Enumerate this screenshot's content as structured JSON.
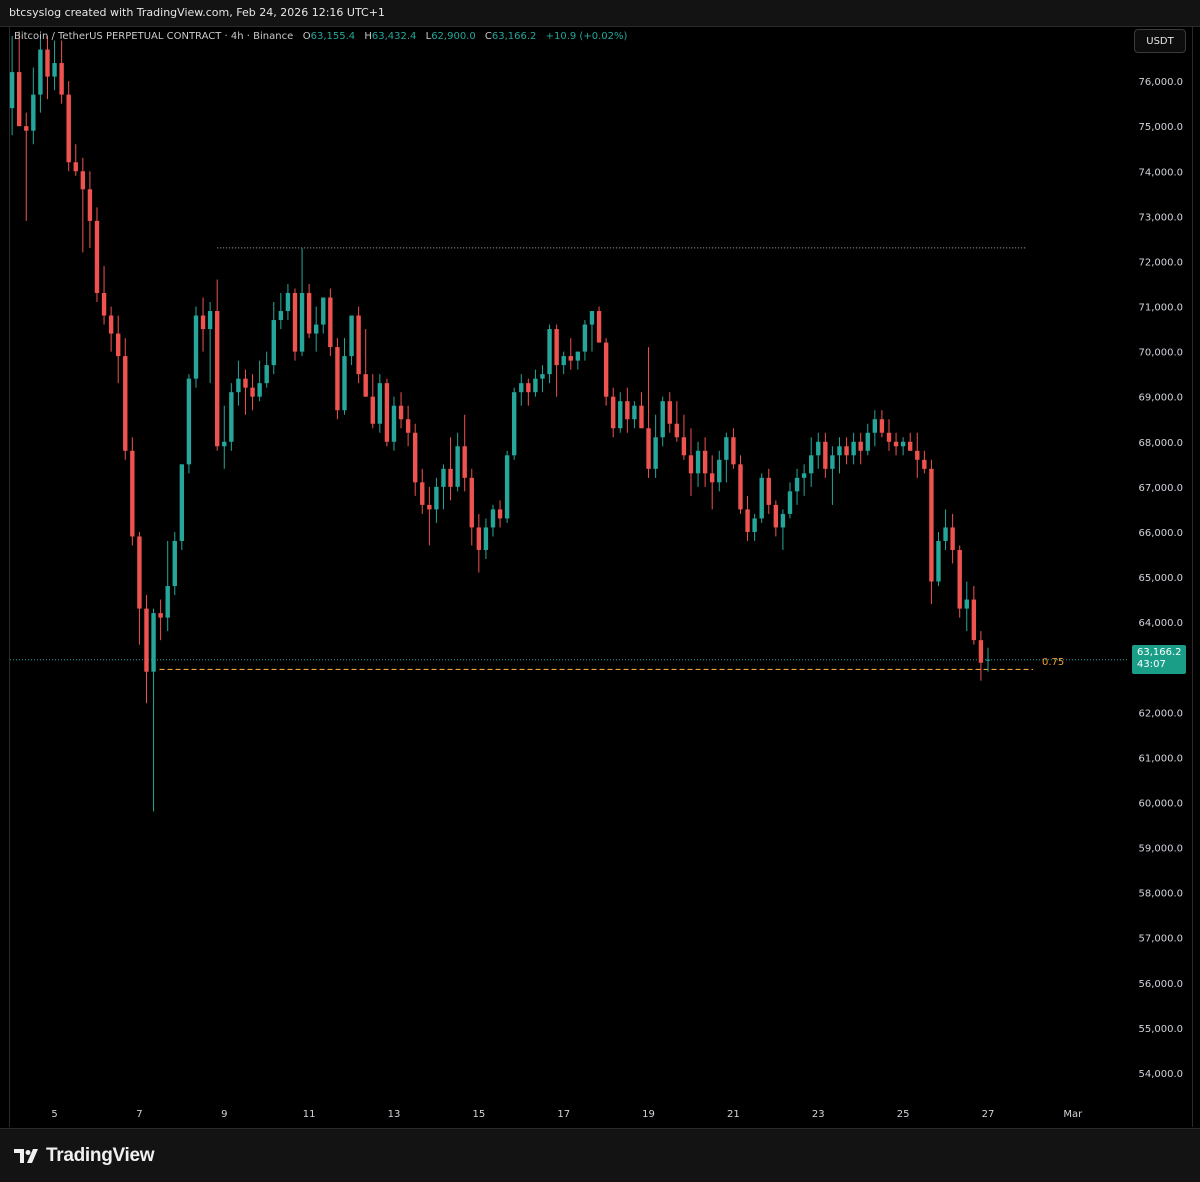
{
  "header": {
    "credit": "btcsyslog created with TradingView.com, Feb 24, 2026 12:16 UTC+1"
  },
  "legend": {
    "symbol": "Bitcoin / TetherUS PERPETUAL CONTRACT · 4h · Binance",
    "open_label": "O",
    "open": "63,155.4",
    "high_label": "H",
    "high": "63,432.4",
    "low_label": "L",
    "low": "62,900.0",
    "close_label": "C",
    "close": "63,166.2",
    "change": "+10.9 (+0.02%)"
  },
  "currency_button": "USDT",
  "price_tag": {
    "price": "63,166.2",
    "countdown": "43:07"
  },
  "fib_level": {
    "label": "0.75",
    "price": 62950,
    "color": "#f0a030"
  },
  "resistance_level": 72300,
  "footer": {
    "brand": "TradingView"
  },
  "colors": {
    "up": "#26a69a",
    "down": "#ef5350",
    "background": "#000000"
  },
  "chart_data": {
    "type": "candlestick",
    "timeframe": "4h",
    "ylim": [
      53400,
      77200
    ],
    "y_ticks": [
      76000,
      75000,
      74000,
      73000,
      72000,
      71000,
      70000,
      69000,
      68000,
      67000,
      66000,
      65000,
      64000,
      63000,
      62000,
      61000,
      60000,
      59000,
      58000,
      57000,
      56000,
      55000,
      54000
    ],
    "y_tick_labels": [
      "76,000.0",
      "75,000.0",
      "74,000.0",
      "73,000.0",
      "72,000.0",
      "71,000.0",
      "70,000.0",
      "69,000.0",
      "68,000.0",
      "67,000.0",
      "66,000.0",
      "65,000.0",
      "64,000.0",
      "63,000.0",
      "62,000.0",
      "61,000.0",
      "60,000.0",
      "59,000.0",
      "58,000.0",
      "57,000.0",
      "56,000.0",
      "55,000.0",
      "54,000.0"
    ],
    "x_ticks": [
      {
        "day": 5,
        "label": "5"
      },
      {
        "day": 7,
        "label": "7"
      },
      {
        "day": 9,
        "label": "9"
      },
      {
        "day": 11,
        "label": "11"
      },
      {
        "day": 13,
        "label": "13"
      },
      {
        "day": 15,
        "label": "15"
      },
      {
        "day": 17,
        "label": "17"
      },
      {
        "day": 19,
        "label": "19"
      },
      {
        "day": 21,
        "label": "21"
      },
      {
        "day": 23,
        "label": "23"
      },
      {
        "day": 25,
        "label": "25"
      },
      {
        "day": 27,
        "label": "27"
      },
      {
        "day": 29,
        "label": "Mar"
      }
    ],
    "x_range_days": [
      3.95,
      30.3
    ],
    "last_price": 63166.2,
    "candles": [
      [
        75400,
        77000,
        74800,
        76200
      ],
      [
        76200,
        77100,
        75000,
        75000
      ],
      [
        75000,
        75300,
        72900,
        74900
      ],
      [
        74900,
        76300,
        74600,
        75700
      ],
      [
        75700,
        77000,
        75300,
        76700
      ],
      [
        76700,
        77000,
        75600,
        76100
      ],
      [
        76100,
        76900,
        75800,
        76400
      ],
      [
        76400,
        76900,
        75500,
        75700
      ],
      [
        75700,
        76000,
        74000,
        74200
      ],
      [
        74200,
        74600,
        73900,
        74000
      ],
      [
        74000,
        74300,
        72200,
        73600
      ],
      [
        73600,
        74000,
        72300,
        72900
      ],
      [
        72900,
        73200,
        71100,
        71300
      ],
      [
        71300,
        71900,
        70600,
        70800
      ],
      [
        70800,
        71000,
        70000,
        70400
      ],
      [
        70400,
        70800,
        69300,
        69900
      ],
      [
        69900,
        70300,
        67600,
        67800
      ],
      [
        67800,
        68100,
        65700,
        65900
      ],
      [
        65900,
        66000,
        63500,
        64300
      ],
      [
        64300,
        64600,
        62200,
        62900
      ],
      [
        62900,
        64300,
        59800,
        64200
      ],
      [
        64200,
        64500,
        63600,
        64100
      ],
      [
        64100,
        65800,
        63800,
        64800
      ],
      [
        64800,
        66000,
        64600,
        65800
      ],
      [
        65800,
        67500,
        65600,
        67500
      ],
      [
        67500,
        69500,
        67300,
        69400
      ],
      [
        69400,
        71000,
        69200,
        70800
      ],
      [
        70800,
        71200,
        70000,
        70500
      ],
      [
        70500,
        71100,
        69300,
        70900
      ],
      [
        70900,
        71600,
        67800,
        67900
      ],
      [
        67900,
        68800,
        67400,
        68000
      ],
      [
        68000,
        69300,
        67800,
        69100
      ],
      [
        69100,
        69800,
        68800,
        69400
      ],
      [
        69400,
        69600,
        68600,
        69200
      ],
      [
        69200,
        69500,
        68700,
        69000
      ],
      [
        69000,
        69800,
        68900,
        69300
      ],
      [
        69300,
        70000,
        69200,
        69700
      ],
      [
        69700,
        71100,
        69500,
        70700
      ],
      [
        70700,
        71300,
        70500,
        70900
      ],
      [
        70900,
        71500,
        70700,
        71300
      ],
      [
        71300,
        71400,
        69800,
        70000
      ],
      [
        70000,
        72300,
        69900,
        71300
      ],
      [
        71300,
        71500,
        70300,
        70400
      ],
      [
        70400,
        71000,
        70000,
        70600
      ],
      [
        70600,
        71200,
        70400,
        71200
      ],
      [
        71200,
        71400,
        69900,
        70100
      ],
      [
        70100,
        70300,
        68500,
        68700
      ],
      [
        68700,
        70300,
        68600,
        69900
      ],
      [
        69900,
        70800,
        69700,
        70800
      ],
      [
        70800,
        71000,
        69300,
        69500
      ],
      [
        69500,
        70500,
        69000,
        69000
      ],
      [
        69000,
        69500,
        68300,
        68400
      ],
      [
        68400,
        69500,
        68200,
        69300
      ],
      [
        69300,
        69400,
        67900,
        68000
      ],
      [
        68000,
        69000,
        67800,
        68800
      ],
      [
        68800,
        69100,
        68300,
        68500
      ],
      [
        68500,
        68800,
        67900,
        68200
      ],
      [
        68200,
        68400,
        66800,
        67100
      ],
      [
        67100,
        67400,
        66400,
        66600
      ],
      [
        66600,
        67000,
        65700,
        66500
      ],
      [
        66500,
        67200,
        66200,
        67000
      ],
      [
        67000,
        67500,
        66500,
        67400
      ],
      [
        67400,
        68100,
        66700,
        67000
      ],
      [
        67000,
        68200,
        66900,
        67900
      ],
      [
        67900,
        68600,
        66900,
        67200
      ],
      [
        67200,
        67400,
        65700,
        66100
      ],
      [
        66100,
        66400,
        65100,
        65600
      ],
      [
        65600,
        66300,
        65400,
        66100
      ],
      [
        66100,
        66600,
        65900,
        66500
      ],
      [
        66500,
        66700,
        66100,
        66300
      ],
      [
        66300,
        67800,
        66200,
        67700
      ],
      [
        67700,
        69200,
        67600,
        69100
      ],
      [
        69100,
        69500,
        68800,
        69300
      ],
      [
        69300,
        69400,
        68800,
        69100
      ],
      [
        69100,
        69600,
        69000,
        69400
      ],
      [
        69400,
        69700,
        69100,
        69500
      ],
      [
        69500,
        70600,
        69300,
        70500
      ],
      [
        70500,
        70600,
        69000,
        69700
      ],
      [
        69700,
        70000,
        69500,
        69900
      ],
      [
        69900,
        70300,
        69600,
        69800
      ],
      [
        69800,
        70000,
        69600,
        70000
      ],
      [
        70000,
        70700,
        69800,
        70600
      ],
      [
        70600,
        70900,
        70000,
        70900
      ],
      [
        70900,
        71000,
        70200,
        70200
      ],
      [
        70200,
        70300,
        68800,
        69000
      ],
      [
        69000,
        69200,
        68100,
        68300
      ],
      [
        68300,
        69100,
        68200,
        68900
      ],
      [
        68900,
        69200,
        68200,
        68500
      ],
      [
        68500,
        68900,
        68300,
        68800
      ],
      [
        68800,
        69100,
        68300,
        68300
      ],
      [
        68300,
        70100,
        67200,
        67400
      ],
      [
        67400,
        68600,
        67200,
        68100
      ],
      [
        68100,
        69000,
        67900,
        68900
      ],
      [
        68900,
        69100,
        68200,
        68400
      ],
      [
        68400,
        68900,
        68000,
        68100
      ],
      [
        68100,
        68600,
        67600,
        67700
      ],
      [
        67700,
        68300,
        66800,
        67300
      ],
      [
        67300,
        68000,
        67000,
        67800
      ],
      [
        67800,
        68100,
        67000,
        67300
      ],
      [
        67300,
        67700,
        66500,
        67100
      ],
      [
        67100,
        67800,
        66900,
        67600
      ],
      [
        67600,
        68200,
        67100,
        68100
      ],
      [
        68100,
        68300,
        67400,
        67500
      ],
      [
        67500,
        67700,
        66400,
        66500
      ],
      [
        66500,
        66800,
        65800,
        66000
      ],
      [
        66000,
        66400,
        65800,
        66300
      ],
      [
        66300,
        67300,
        66200,
        67200
      ],
      [
        67200,
        67400,
        66400,
        66600
      ],
      [
        66600,
        66700,
        65900,
        66100
      ],
      [
        66100,
        66500,
        65600,
        66400
      ],
      [
        66400,
        67100,
        66300,
        66900
      ],
      [
        66900,
        67400,
        66600,
        67200
      ],
      [
        67200,
        67500,
        66800,
        67300
      ],
      [
        67300,
        68100,
        67000,
        67700
      ],
      [
        67700,
        68200,
        67400,
        68000
      ],
      [
        68000,
        68200,
        67200,
        67400
      ],
      [
        67400,
        67900,
        66600,
        67700
      ],
      [
        67700,
        68100,
        67300,
        67900
      ],
      [
        67900,
        68100,
        67500,
        67700
      ],
      [
        67700,
        68200,
        67500,
        68000
      ],
      [
        68000,
        68200,
        67500,
        67800
      ],
      [
        67800,
        68400,
        67700,
        68200
      ],
      [
        68200,
        68700,
        67900,
        68500
      ],
      [
        68500,
        68700,
        68100,
        68200
      ],
      [
        68200,
        68500,
        67800,
        68000
      ],
      [
        68000,
        68200,
        67700,
        67900
      ],
      [
        67900,
        68100,
        67700,
        68000
      ],
      [
        68000,
        68200,
        67800,
        67800
      ],
      [
        67800,
        68200,
        67200,
        67600
      ],
      [
        67600,
        67800,
        67300,
        67400
      ],
      [
        67400,
        67600,
        64400,
        64900
      ],
      [
        64900,
        66000,
        64800,
        65800
      ],
      [
        65800,
        66500,
        65600,
        66100
      ],
      [
        66100,
        66400,
        65300,
        65600
      ],
      [
        65600,
        65700,
        64100,
        64300
      ],
      [
        64300,
        64900,
        63800,
        64500
      ],
      [
        64500,
        64800,
        63500,
        63600
      ],
      [
        63600,
        63800,
        62700,
        63100
      ],
      [
        63155.4,
        63432.4,
        62900,
        63166.2
      ]
    ]
  }
}
